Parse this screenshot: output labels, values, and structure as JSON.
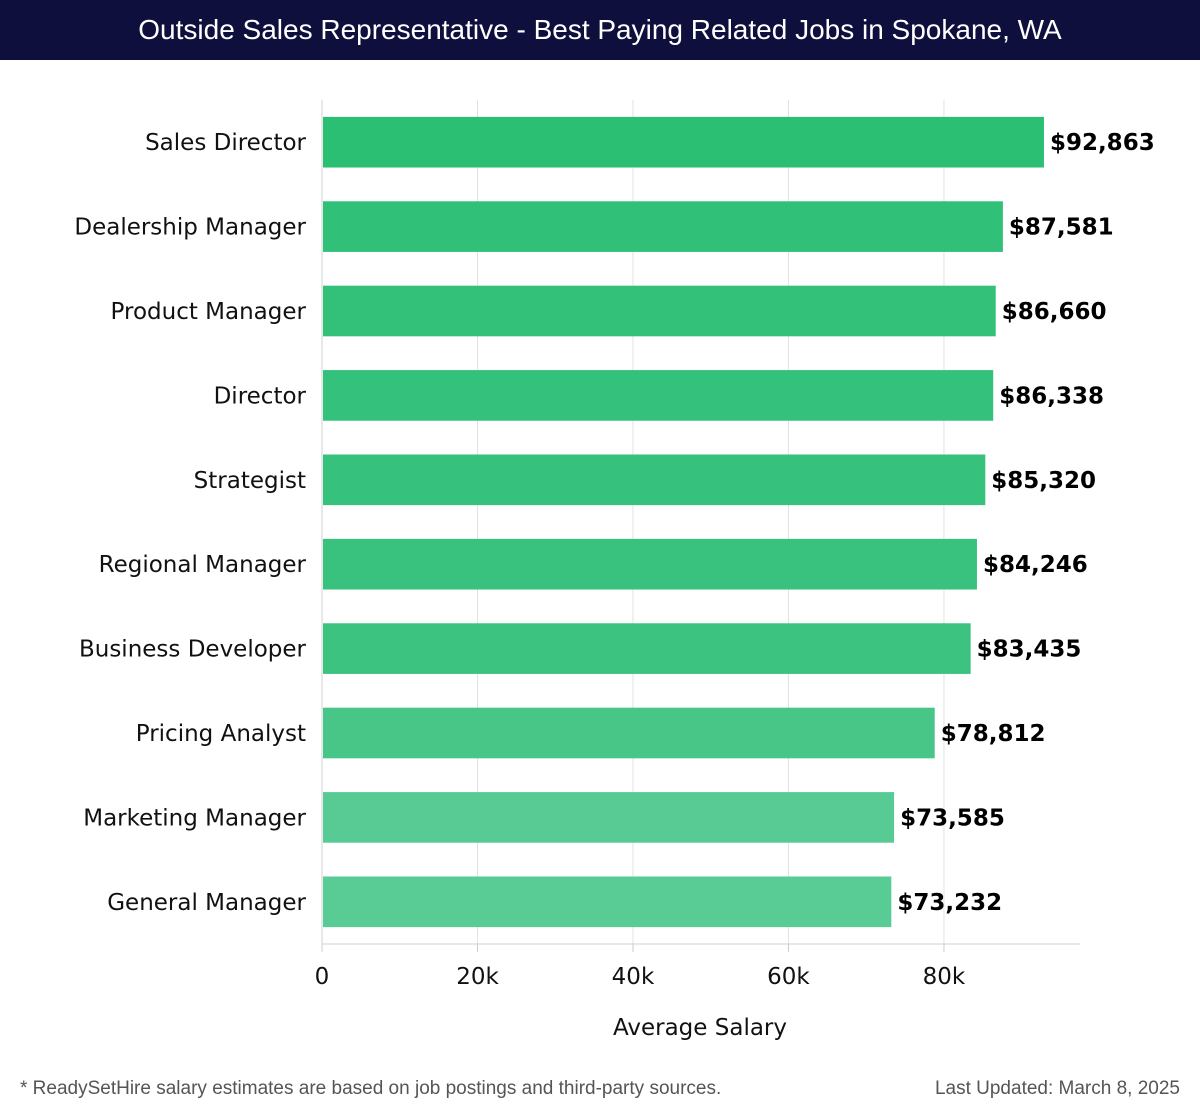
{
  "header": {
    "title": "Outside Sales Representative - Best Paying Related Jobs in Spokane, WA"
  },
  "chart_data": {
    "type": "bar",
    "orientation": "horizontal",
    "title": "Outside Sales Representative - Best Paying Related Jobs in Spokane, WA",
    "xlabel": "Average Salary",
    "ylabel": "",
    "xlim": [
      0,
      97500
    ],
    "grid": true,
    "categories": [
      "Sales Director",
      "Dealership Manager",
      "Product Manager",
      "Director",
      "Strategist",
      "Regional Manager",
      "Business Developer",
      "Pricing Analyst",
      "Marketing Manager",
      "General Manager"
    ],
    "values": [
      92863,
      87581,
      86660,
      86338,
      85320,
      84246,
      83435,
      78812,
      73585,
      73232
    ],
    "value_labels": [
      "$92,863",
      "$87,581",
      "$86,660",
      "$86,338",
      "$85,320",
      "$84,246",
      "$83,435",
      "$78,812",
      "$73,585",
      "$73,232"
    ],
    "ticks": [
      0,
      20000,
      40000,
      60000,
      80000
    ],
    "tick_labels": [
      "0",
      "20k",
      "40k",
      "60k",
      "80k"
    ],
    "bar_colors": [
      "#2bbf74",
      "#30c078",
      "#33c17a",
      "#34c17b",
      "#36c17c",
      "#39c27e",
      "#3bc37f",
      "#47c687",
      "#58cb95",
      "#59cc96"
    ]
  },
  "footer": {
    "note": "* ReadySetHire salary estimates are based on job postings and third-party sources.",
    "updated": "Last Updated: March 8, 2025"
  }
}
